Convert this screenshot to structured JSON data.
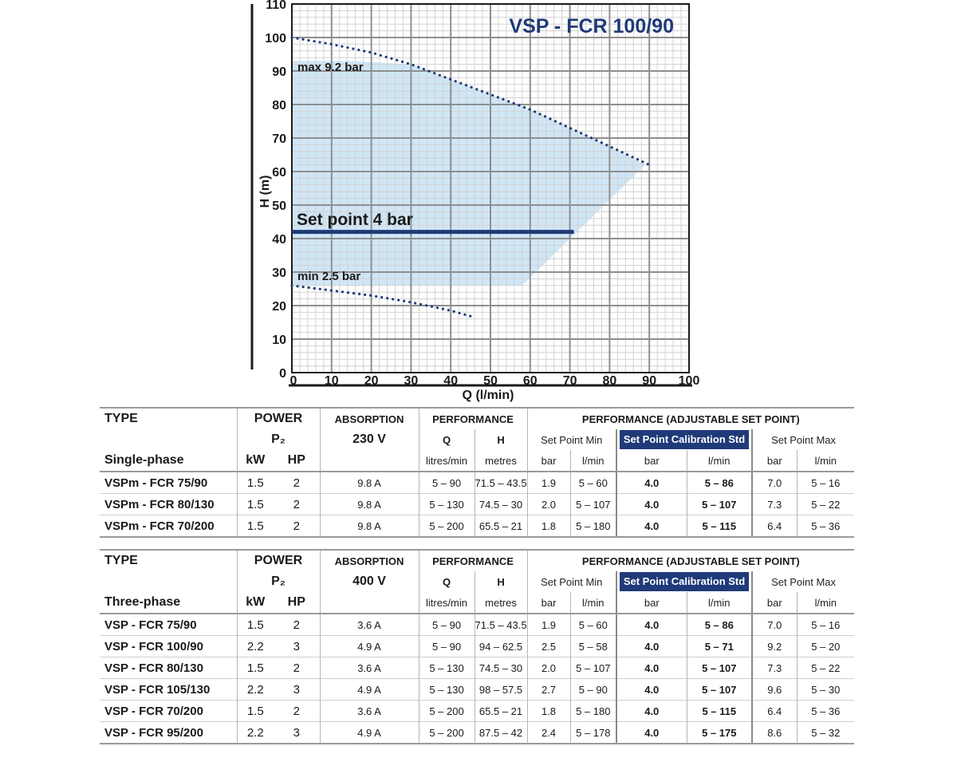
{
  "chart_data": {
    "type": "line",
    "title": "VSP - FCR 100/90",
    "xlabel": "Q (l/min)",
    "ylabel": "H (m)",
    "xlim": [
      0,
      100
    ],
    "ylim": [
      0,
      110
    ],
    "x_ticks": [
      "0",
      "10",
      "20",
      "30",
      "40",
      "50",
      "60",
      "70",
      "80",
      "90",
      "100"
    ],
    "y_ticks": [
      "0",
      "10",
      "20",
      "30",
      "40",
      "50",
      "60",
      "70",
      "80",
      "90",
      "100",
      "110"
    ],
    "grid": true,
    "series": [
      {
        "name": "max curve",
        "label": "max 9.2 bar",
        "style": "dotted",
        "x": [
          0,
          10,
          20,
          30,
          40,
          50,
          60,
          70,
          80,
          90
        ],
        "y": [
          100,
          98,
          95.5,
          92,
          87.5,
          83,
          78.5,
          73,
          67.5,
          62
        ]
      },
      {
        "name": "min curve",
        "label": "min 2.5 bar",
        "style": "dotted",
        "x": [
          0,
          10,
          20,
          30,
          40,
          46
        ],
        "y": [
          26,
          24.5,
          23,
          21,
          18.5,
          16.5
        ]
      },
      {
        "name": "set point",
        "label": "Set point 4 bar",
        "style": "solid",
        "x": [
          0,
          71
        ],
        "y": [
          42,
          42
        ]
      }
    ],
    "region": {
      "name": "adjustable range",
      "polygon": [
        [
          0,
          93
        ],
        [
          15,
          93
        ],
        [
          30,
          92
        ],
        [
          40,
          87.5
        ],
        [
          50,
          83
        ],
        [
          60,
          78.5
        ],
        [
          70,
          73
        ],
        [
          80,
          67.5
        ],
        [
          89,
          62
        ],
        [
          58,
          26
        ],
        [
          0,
          26
        ]
      ]
    },
    "colors": {
      "curve": "#1f3a78",
      "region": "#cfe6f7",
      "title": "#1f3a78"
    }
  },
  "tables": {
    "single": {
      "h_type": "TYPE",
      "h_power": "POWER",
      "h_p2": "P₂",
      "h_phase": "Single-phase",
      "h_kw": "kW",
      "h_hp": "HP",
      "h_absorption": "ABSORPTION",
      "h_voltage": "230 V",
      "h_performance": "PERFORMANCE",
      "h_q": "Q",
      "h_h": "H",
      "h_q_unit": "litres/min",
      "h_h_unit": "metres",
      "h_adjustable": "PERFORMANCE (ADJUSTABLE SET POINT)",
      "h_sp_min": "Set Point Min",
      "h_sp_std": "Set Point Calibration Std",
      "h_sp_max": "Set Point Max",
      "u_bar": "bar",
      "u_lmin": "l/min",
      "rows": [
        {
          "type": "VSPm - FCR 75/90",
          "kw": "1.5",
          "hp": "2",
          "abs": "9.8 A",
          "q": "5 – 90",
          "h": "71.5 – 43.5",
          "min_bar": "1.9",
          "min_l": "5 – 60",
          "std_bar": "4.0",
          "std_l": "5 – 86",
          "max_bar": "7.0",
          "max_l": "5 – 16"
        },
        {
          "type": "VSPm - FCR 80/130",
          "kw": "1.5",
          "hp": "2",
          "abs": "9.8 A",
          "q": "5 – 130",
          "h": "74.5 – 30",
          "min_bar": "2.0",
          "min_l": "5 – 107",
          "std_bar": "4.0",
          "std_l": "5 – 107",
          "max_bar": "7.3",
          "max_l": "5 – 22"
        },
        {
          "type": "VSPm - FCR 70/200",
          "kw": "1.5",
          "hp": "2",
          "abs": "9.8 A",
          "q": "5 – 200",
          "h": "65.5 – 21",
          "min_bar": "1.8",
          "min_l": "5 – 180",
          "std_bar": "4.0",
          "std_l": "5 – 115",
          "max_bar": "6.4",
          "max_l": "5 – 36"
        }
      ]
    },
    "three": {
      "h_type": "TYPE",
      "h_power": "POWER",
      "h_p2": "P₂",
      "h_phase": "Three-phase",
      "h_kw": "kW",
      "h_hp": "HP",
      "h_absorption": "ABSORPTION",
      "h_voltage": "400 V",
      "h_performance": "PERFORMANCE",
      "h_q": "Q",
      "h_h": "H",
      "h_q_unit": "litres/min",
      "h_h_unit": "metres",
      "h_adjustable": "PERFORMANCE (ADJUSTABLE SET POINT)",
      "h_sp_min": "Set Point Min",
      "h_sp_std": "Set Point Calibration Std",
      "h_sp_max": "Set Point Max",
      "u_bar": "bar",
      "u_lmin": "l/min",
      "rows": [
        {
          "type": "VSP - FCR 75/90",
          "kw": "1.5",
          "hp": "2",
          "abs": "3.6 A",
          "q": "5 – 90",
          "h": "71.5 – 43.5",
          "min_bar": "1.9",
          "min_l": "5 – 60",
          "std_bar": "4.0",
          "std_l": "5 – 86",
          "max_bar": "7.0",
          "max_l": "5 – 16"
        },
        {
          "type": "VSP - FCR 100/90",
          "kw": "2.2",
          "hp": "3",
          "abs": "4.9 A",
          "q": "5 – 90",
          "h": "94 – 62.5",
          "min_bar": "2.5",
          "min_l": "5 – 58",
          "std_bar": "4.0",
          "std_l": "5 – 71",
          "max_bar": "9.2",
          "max_l": "5 – 20"
        },
        {
          "type": "VSP - FCR 80/130",
          "kw": "1.5",
          "hp": "2",
          "abs": "3.6 A",
          "q": "5 – 130",
          "h": "74.5 – 30",
          "min_bar": "2.0",
          "min_l": "5 – 107",
          "std_bar": "4.0",
          "std_l": "5 – 107",
          "max_bar": "7.3",
          "max_l": "5 – 22"
        },
        {
          "type": "VSP - FCR 105/130",
          "kw": "2.2",
          "hp": "3",
          "abs": "4.9 A",
          "q": "5 – 130",
          "h": "98 – 57.5",
          "min_bar": "2.7",
          "min_l": "5 – 90",
          "std_bar": "4.0",
          "std_l": "5 – 107",
          "max_bar": "9.6",
          "max_l": "5 – 30"
        },
        {
          "type": "VSP - FCR 70/200",
          "kw": "1.5",
          "hp": "2",
          "abs": "3.6 A",
          "q": "5 – 200",
          "h": "65.5 – 21",
          "min_bar": "1.8",
          "min_l": "5 – 180",
          "std_bar": "4.0",
          "std_l": "5 – 115",
          "max_bar": "6.4",
          "max_l": "5 – 36"
        },
        {
          "type": "VSP - FCR 95/200",
          "kw": "2.2",
          "hp": "3",
          "abs": "4.9 A",
          "q": "5 – 200",
          "h": "87.5 – 42",
          "min_bar": "2.4",
          "min_l": "5 – 178",
          "std_bar": "4.0",
          "std_l": "5 – 175",
          "max_bar": "8.6",
          "max_l": "5 – 32"
        }
      ]
    }
  }
}
